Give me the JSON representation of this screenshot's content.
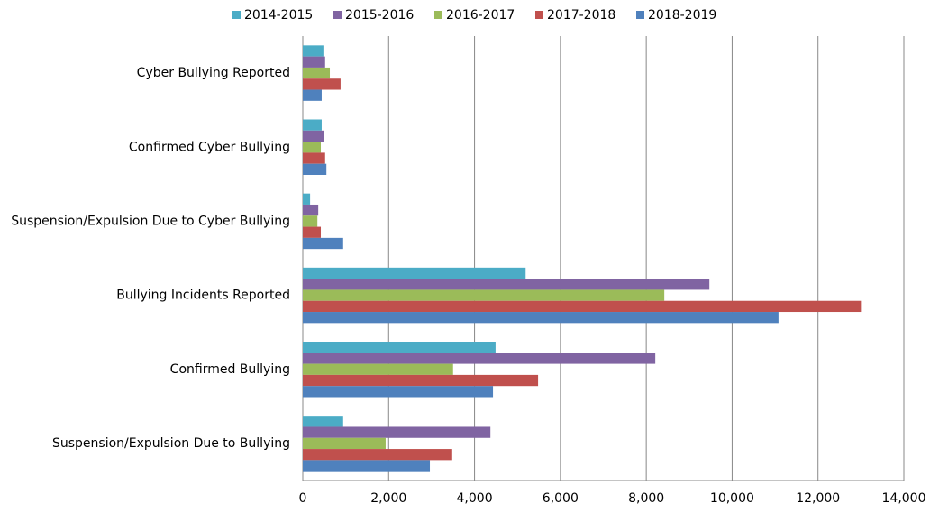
{
  "chart_data": {
    "type": "hbar",
    "categories": [
      "Cyber Bullying Reported",
      "Confirmed Cyber Bullying",
      "Suspension/Expulsion Due to Cyber Bullying",
      "Bullying Incidents Reported",
      "Confirmed Bullying",
      "Suspension/Expulsion Due to Bullying"
    ],
    "series": [
      {
        "name": "2014-2015",
        "color": "#4bacc6",
        "values": [
          480,
          440,
          170,
          5190,
          4490,
          940
        ]
      },
      {
        "name": "2015-2016",
        "color": "#8064a2",
        "values": [
          520,
          500,
          360,
          9470,
          8210,
          4370
        ]
      },
      {
        "name": "2016-2017",
        "color": "#9bbb59",
        "values": [
          630,
          420,
          340,
          8420,
          3500,
          1930
        ]
      },
      {
        "name": "2017-2018",
        "color": "#c0504d",
        "values": [
          880,
          520,
          420,
          13000,
          5480,
          3480
        ]
      },
      {
        "name": "2018-2019",
        "color": "#4f81bd",
        "values": [
          440,
          550,
          940,
          11080,
          4430,
          2960
        ]
      }
    ],
    "xlim": [
      0,
      14000
    ],
    "xticks": [
      0,
      {
        "value": 2000,
        "label": "2,000"
      },
      {
        "value": 4000,
        "label": "4,000"
      },
      {
        "value": 6000,
        "label": "6,000"
      },
      {
        "value": 8000,
        "label": "8,000"
      },
      {
        "value": 10000,
        "label": "10,000"
      },
      {
        "value": 12000,
        "label": "12,000"
      },
      {
        "value": 14000,
        "label": "14,000"
      }
    ],
    "grid": true,
    "legend": "top"
  }
}
